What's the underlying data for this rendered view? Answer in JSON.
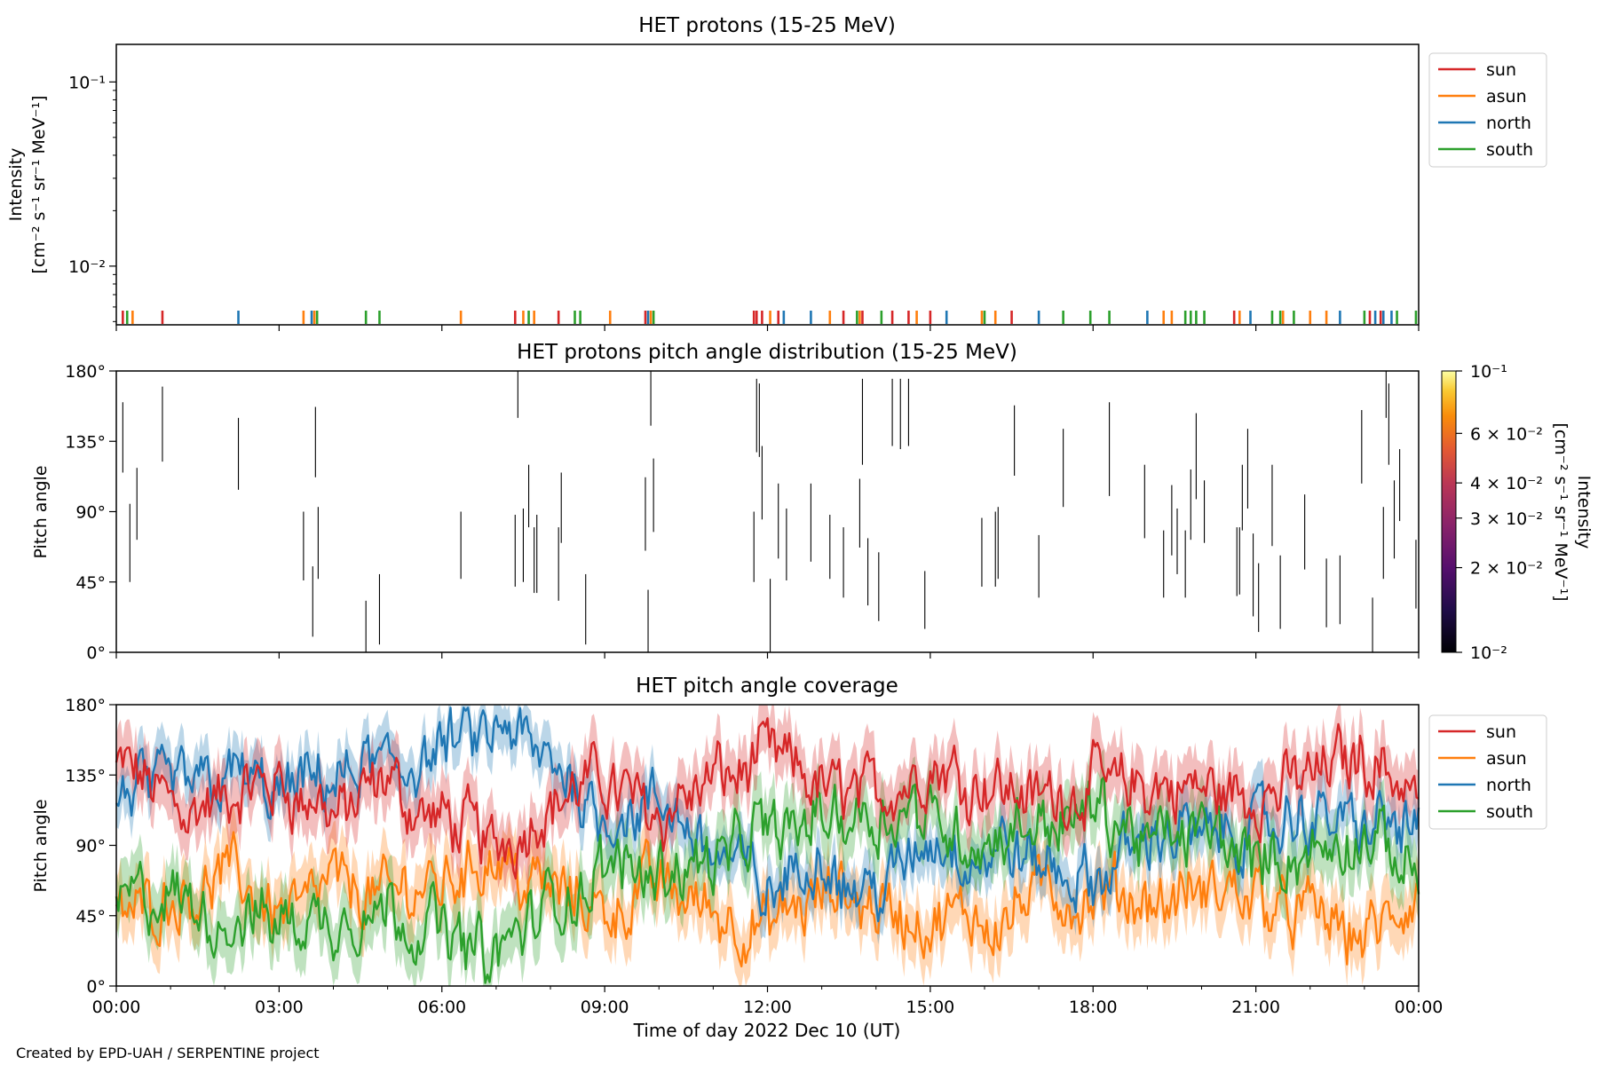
{
  "figure": {
    "footer": "Created by EPD-UAH / SERPENTINE project",
    "xlabel": "Time of day 2022 Dec 10 (UT)",
    "xticks": [
      "00:00",
      "03:00",
      "06:00",
      "09:00",
      "12:00",
      "15:00",
      "18:00",
      "21:00",
      "00:00"
    ]
  },
  "colors": {
    "sun": "#d62728",
    "asun": "#ff7f0e",
    "north": "#1f77b4",
    "south": "#2ca02c"
  },
  "legend": [
    "sun",
    "asun",
    "north",
    "south"
  ],
  "chart_data": [
    {
      "type": "line",
      "title": "HET protons (15-25 MeV)",
      "ylabel_line1": "Intensity",
      "ylabel_line2": "[cm⁻² s⁻¹ sr⁻¹ MeV⁻¹]",
      "yscale": "log",
      "ylim": [
        0.0048,
        0.16
      ],
      "ytick_labels": [
        "10⁻²",
        "10⁻¹"
      ],
      "xlim_hours": [
        0,
        24
      ],
      "legend_position": "outside-top-right",
      "note": "values at the lower edge of the axis; each sample is a short vertical tick",
      "series": [
        {
          "name": "sun",
          "times_hours": [
            0.12,
            0.85,
            7.35,
            8.15,
            9.75,
            11.75,
            11.8,
            11.9,
            12.2,
            13.4,
            13.75,
            14.3,
            14.6,
            15.0,
            16.5,
            20.6,
            23.1,
            23.3
          ]
        },
        {
          "name": "asun",
          "times_hours": [
            0.3,
            3.45,
            3.65,
            6.35,
            7.5,
            7.7,
            9.1,
            9.85,
            12.05,
            13.15,
            13.7,
            14.75,
            15.95,
            16.2,
            19.3,
            19.45,
            20.7,
            21.5,
            22.0,
            22.3
          ]
        },
        {
          "name": "north",
          "times_hours": [
            2.25,
            3.6,
            9.8,
            12.3,
            12.8,
            15.3,
            17.0,
            19.0,
            20.9,
            22.55,
            23.2,
            23.35,
            23.5
          ]
        },
        {
          "name": "south",
          "times_hours": [
            0.2,
            3.7,
            4.6,
            4.85,
            7.6,
            8.45,
            8.55,
            9.9,
            13.65,
            14.1,
            16.0,
            17.45,
            17.95,
            18.3,
            19.7,
            19.8,
            19.9,
            20.05,
            21.3,
            21.45,
            21.7,
            23.0,
            23.6,
            23.95
          ]
        }
      ]
    },
    {
      "type": "heatmap",
      "title": "HET protons pitch angle distribution (15-25 MeV)",
      "ylabel": "Pitch angle",
      "ylim": [
        0,
        180
      ],
      "yticks": [
        0,
        45,
        90,
        135,
        180
      ],
      "ytick_labels": [
        "0°",
        "45°",
        "90°",
        "135°",
        "180°"
      ],
      "colorbar": {
        "scale": "log",
        "range": [
          0.01,
          0.1
        ],
        "colormap": "inferno",
        "ticks": [
          0.01,
          0.02,
          0.03,
          0.04,
          0.06,
          0.1
        ],
        "tick_labels": [
          "10⁻²",
          "2 × 10⁻²",
          "3 × 10⁻²",
          "4 × 10⁻²",
          "6 × 10⁻²",
          "10⁻¹"
        ],
        "label_line1": "Intensity",
        "label_line2": "[cm⁻² s⁻¹ sr⁻¹ MeV⁻¹]"
      },
      "segments": [
        [
          0.12,
          115,
          160
        ],
        [
          0.25,
          45,
          95
        ],
        [
          0.38,
          72,
          118
        ],
        [
          0.85,
          122,
          170
        ],
        [
          2.25,
          104,
          150
        ],
        [
          3.45,
          46,
          90
        ],
        [
          3.62,
          10,
          55
        ],
        [
          3.67,
          112,
          157
        ],
        [
          3.72,
          47,
          93
        ],
        [
          4.6,
          0,
          33
        ],
        [
          4.85,
          5,
          50
        ],
        [
          6.35,
          47,
          90
        ],
        [
          7.35,
          42,
          88
        ],
        [
          7.4,
          150,
          180
        ],
        [
          7.5,
          45,
          92
        ],
        [
          7.6,
          80,
          120
        ],
        [
          7.7,
          38,
          80
        ],
        [
          7.75,
          38,
          88
        ],
        [
          8.15,
          33,
          80
        ],
        [
          8.2,
          70,
          115
        ],
        [
          8.65,
          5,
          50
        ],
        [
          9.75,
          65,
          112
        ],
        [
          9.8,
          0,
          40
        ],
        [
          9.85,
          145,
          180
        ],
        [
          9.9,
          77,
          124
        ],
        [
          11.75,
          45,
          90
        ],
        [
          11.8,
          128,
          175
        ],
        [
          11.85,
          125,
          172
        ],
        [
          11.9,
          85,
          132
        ],
        [
          12.05,
          0,
          47
        ],
        [
          12.2,
          60,
          108
        ],
        [
          12.35,
          46,
          92
        ],
        [
          12.8,
          58,
          108
        ],
        [
          13.15,
          47,
          88
        ],
        [
          13.4,
          35,
          80
        ],
        [
          13.7,
          67,
          111
        ],
        [
          13.75,
          120,
          175
        ],
        [
          13.85,
          30,
          73
        ],
        [
          14.05,
          20,
          64
        ],
        [
          14.3,
          132,
          175
        ],
        [
          14.45,
          130,
          175
        ],
        [
          14.6,
          132,
          175
        ],
        [
          14.9,
          15,
          52
        ],
        [
          15.95,
          42,
          86
        ],
        [
          16.2,
          42,
          90
        ],
        [
          16.25,
          47,
          93
        ],
        [
          16.55,
          113,
          158
        ],
        [
          17.0,
          35,
          75
        ],
        [
          17.45,
          93,
          143
        ],
        [
          18.3,
          100,
          160
        ],
        [
          18.95,
          73,
          120
        ],
        [
          19.3,
          35,
          78
        ],
        [
          19.45,
          62,
          107
        ],
        [
          19.55,
          50,
          92
        ],
        [
          19.7,
          35,
          78
        ],
        [
          19.8,
          72,
          117
        ],
        [
          19.9,
          98,
          153
        ],
        [
          20.05,
          70,
          110
        ],
        [
          20.65,
          36,
          80
        ],
        [
          20.7,
          37,
          80
        ],
        [
          20.75,
          78,
          120
        ],
        [
          20.85,
          92,
          143
        ],
        [
          20.95,
          23,
          76
        ],
        [
          21.05,
          13,
          57
        ],
        [
          21.3,
          68,
          120
        ],
        [
          21.45,
          15,
          62
        ],
        [
          21.9,
          53,
          101
        ],
        [
          22.3,
          16,
          60
        ],
        [
          22.55,
          18,
          62
        ],
        [
          22.95,
          108,
          155
        ],
        [
          23.15,
          0,
          35
        ],
        [
          23.35,
          47,
          93
        ],
        [
          23.4,
          150,
          180
        ],
        [
          23.45,
          120,
          172
        ],
        [
          23.55,
          60,
          110
        ],
        [
          23.65,
          84,
          130
        ],
        [
          23.95,
          28,
          72
        ]
      ]
    },
    {
      "type": "area",
      "title": "HET pitch angle coverage",
      "ylabel": "Pitch angle",
      "ylim": [
        0,
        180
      ],
      "yticks": [
        0,
        45,
        90,
        135,
        180
      ],
      "ytick_labels": [
        "0°",
        "45°",
        "90°",
        "135°",
        "180°"
      ],
      "legend_position": "outside-top-right",
      "times_hours": [
        0,
        1,
        2,
        3,
        4,
        5,
        6,
        7,
        8,
        9,
        10,
        11,
        12,
        13,
        14,
        15,
        16,
        17,
        18,
        19,
        20,
        21,
        22,
        23,
        24
      ],
      "series": [
        {
          "name": "sun",
          "mean": [
            140,
            120,
            115,
            130,
            110,
            125,
            105,
            90,
            120,
            130,
            115,
            130,
            145,
            125,
            125,
            140,
            135,
            120,
            130,
            125,
            125,
            120,
            135,
            150,
            125
          ],
          "band_halfwidth": 18
        },
        {
          "name": "asun",
          "mean": [
            40,
            60,
            70,
            50,
            65,
            55,
            70,
            85,
            60,
            50,
            65,
            50,
            35,
            55,
            55,
            35,
            45,
            60,
            50,
            55,
            55,
            60,
            45,
            30,
            50
          ],
          "band_halfwidth": 18
        },
        {
          "name": "north",
          "mean": [
            120,
            125,
            140,
            120,
            130,
            140,
            150,
            160,
            140,
            115,
            110,
            90,
            60,
            80,
            60,
            90,
            85,
            80,
            60,
            100,
            95,
            100,
            105,
            105,
            100
          ],
          "band_halfwidth": 15
        },
        {
          "name": "south",
          "mean": [
            60,
            50,
            40,
            45,
            40,
            55,
            35,
            20,
            50,
            70,
            80,
            80,
            100,
            110,
            115,
            110,
            90,
            105,
            110,
            90,
            100,
            85,
            80,
            90,
            75
          ],
          "band_halfwidth": 18
        }
      ]
    }
  ]
}
